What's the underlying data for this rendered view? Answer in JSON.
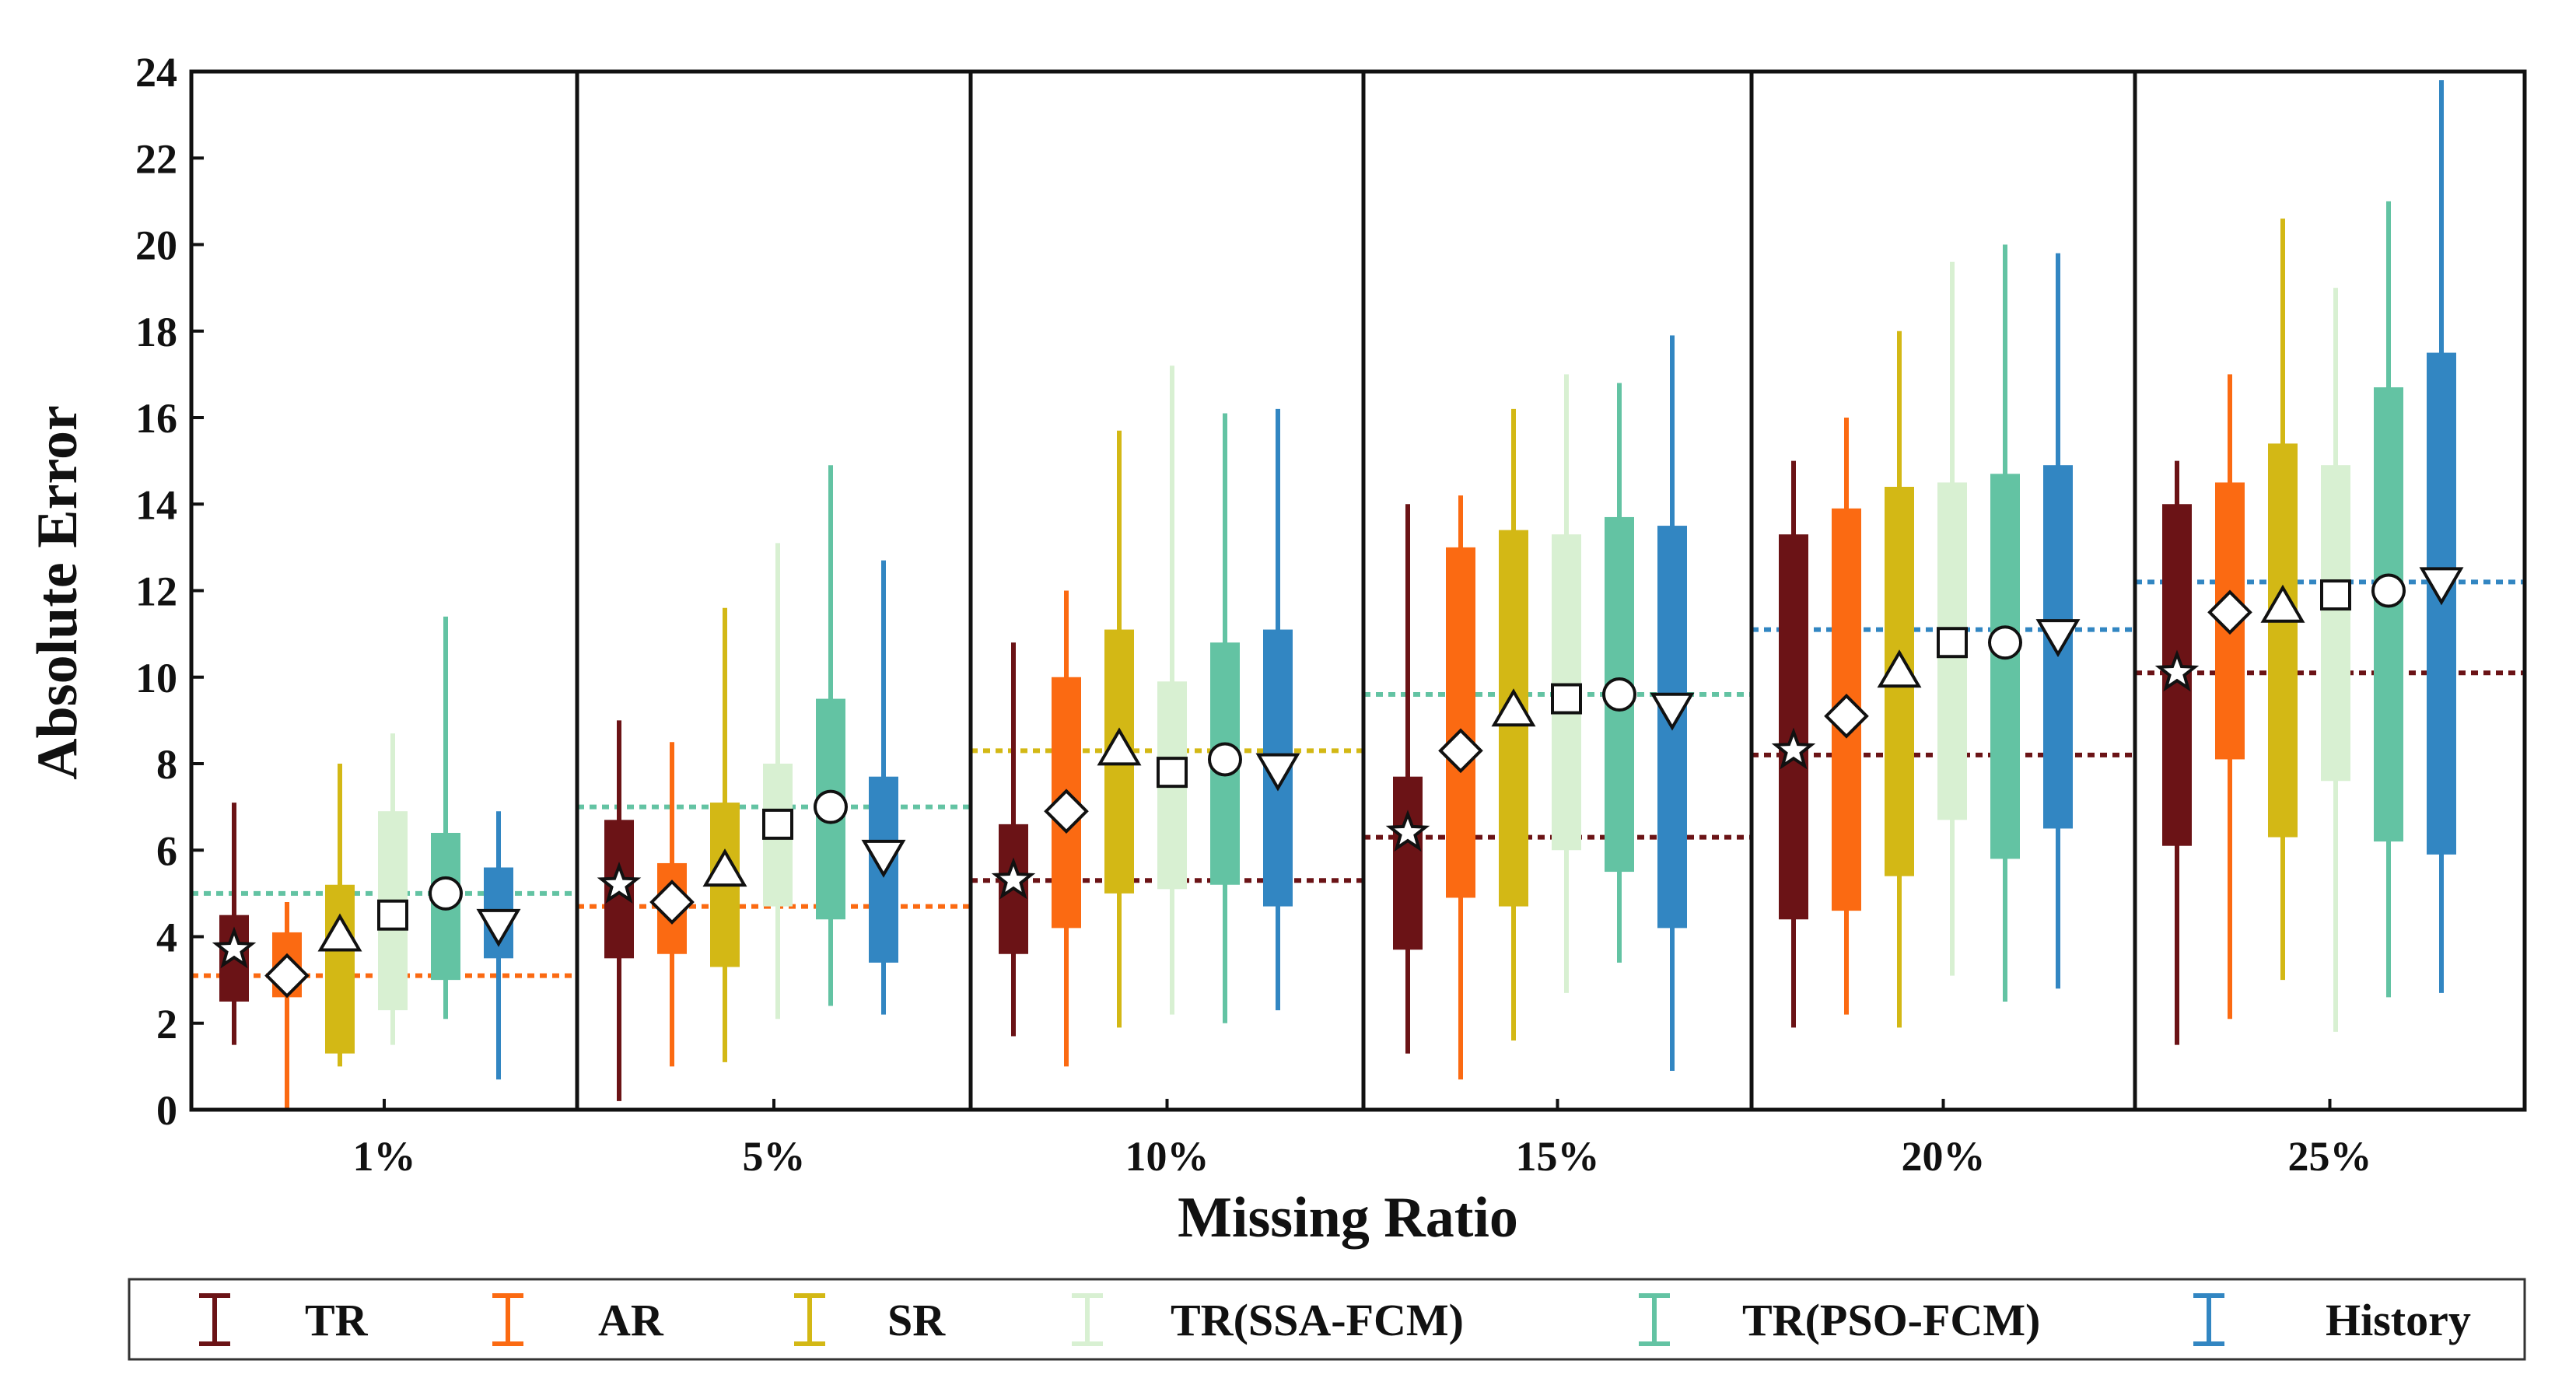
{
  "chart_data": {
    "type": "boxplot",
    "title": "",
    "xlabel": "Missing Ratio",
    "ylabel": "Absolute Error",
    "ylim": [
      0,
      24
    ],
    "yticks": [
      "0",
      "2",
      "4",
      "6",
      "8",
      "10",
      "12",
      "14",
      "16",
      "18",
      "20",
      "22",
      "24"
    ],
    "groups": [
      "1%",
      "5%",
      "10%",
      "15%",
      "20%",
      "25%"
    ],
    "legend_position": "bottom",
    "series": [
      {
        "name": "TR",
        "color": "#6b1316",
        "marker": "star",
        "whisker_low": [
          1.5,
          0.2,
          1.7,
          1.3,
          1.9,
          1.5
        ],
        "q1": [
          2.5,
          3.5,
          3.6,
          3.7,
          4.4,
          6.1
        ],
        "q3": [
          4.5,
          6.7,
          6.6,
          7.7,
          13.3,
          14.0
        ],
        "whisker_high": [
          7.1,
          9.0,
          10.8,
          14.0,
          15.0,
          15.0
        ],
        "mean": [
          3.7,
          5.2,
          5.3,
          6.4,
          8.3,
          10.1
        ]
      },
      {
        "name": "AR",
        "color": "#fb6a12",
        "marker": "diamond",
        "whisker_low": [
          0.0,
          1.0,
          1.0,
          0.7,
          2.2,
          2.1
        ],
        "q1": [
          2.6,
          3.6,
          4.2,
          4.9,
          4.6,
          8.1
        ],
        "q3": [
          4.1,
          5.7,
          10.0,
          13.0,
          13.9,
          14.5
        ],
        "whisker_high": [
          4.8,
          8.5,
          12.0,
          14.2,
          16.0,
          17.0
        ],
        "mean": [
          3.1,
          4.8,
          6.9,
          8.3,
          9.1,
          11.5
        ]
      },
      {
        "name": "SR",
        "color": "#d3b815",
        "marker": "triangle-up",
        "whisker_low": [
          1.0,
          1.1,
          1.9,
          1.6,
          1.9,
          3.0
        ],
        "q1": [
          1.3,
          3.3,
          5.0,
          4.7,
          5.4,
          6.3
        ],
        "q3": [
          5.2,
          7.1,
          11.1,
          13.4,
          14.4,
          15.4
        ],
        "whisker_high": [
          8.0,
          11.6,
          15.7,
          16.2,
          18.0,
          20.6
        ],
        "mean": [
          4.0,
          5.5,
          8.3,
          9.2,
          10.1,
          11.6
        ]
      },
      {
        "name": "TR(SSA-FCM)",
        "color": "#d8f0d2",
        "marker": "square",
        "whisker_low": [
          1.5,
          2.1,
          2.2,
          2.7,
          3.1,
          1.8
        ],
        "q1": [
          2.3,
          4.7,
          5.1,
          6.0,
          6.7,
          7.6
        ],
        "q3": [
          6.9,
          8.0,
          9.9,
          13.3,
          14.5,
          14.9
        ],
        "whisker_high": [
          8.7,
          13.1,
          17.2,
          17.0,
          19.6,
          19.0
        ],
        "mean": [
          4.5,
          6.6,
          7.8,
          9.5,
          10.8,
          11.9
        ]
      },
      {
        "name": "TR(PSO-FCM)",
        "color": "#63c3a3",
        "marker": "circle",
        "whisker_low": [
          2.1,
          2.4,
          2.0,
          3.4,
          2.5,
          2.6
        ],
        "q1": [
          3.0,
          4.4,
          5.2,
          5.5,
          5.8,
          6.2
        ],
        "q3": [
          6.4,
          9.5,
          10.8,
          13.7,
          14.7,
          16.7
        ],
        "whisker_high": [
          11.4,
          14.9,
          16.1,
          16.8,
          20.0,
          21.0
        ],
        "mean": [
          5.0,
          7.0,
          8.1,
          9.6,
          10.8,
          12.0
        ]
      },
      {
        "name": "History",
        "color": "#3286c2",
        "marker": "triangle-down",
        "whisker_low": [
          0.7,
          2.2,
          2.3,
          0.9,
          2.8,
          2.7
        ],
        "q1": [
          3.5,
          3.4,
          4.7,
          4.2,
          6.5,
          5.9
        ],
        "q3": [
          5.6,
          7.7,
          11.1,
          13.5,
          14.9,
          17.5
        ],
        "whisker_high": [
          6.9,
          12.7,
          16.2,
          17.9,
          19.8,
          23.8
        ],
        "mean": [
          4.3,
          5.9,
          7.9,
          9.3,
          11.0,
          12.2
        ]
      }
    ],
    "reference_lines": [
      {
        "group": "1%",
        "lines": [
          {
            "value": 5.0,
            "color": "#63c3a3"
          },
          {
            "value": 3.1,
            "color": "#fb6a12"
          }
        ]
      },
      {
        "group": "5%",
        "lines": [
          {
            "value": 7.0,
            "color": "#63c3a3"
          },
          {
            "value": 4.7,
            "color": "#fb6a12"
          }
        ]
      },
      {
        "group": "10%",
        "lines": [
          {
            "value": 8.3,
            "color": "#d3b815"
          },
          {
            "value": 5.3,
            "color": "#6b1316"
          }
        ]
      },
      {
        "group": "15%",
        "lines": [
          {
            "value": 9.6,
            "color": "#63c3a3"
          },
          {
            "value": 6.3,
            "color": "#6b1316"
          }
        ]
      },
      {
        "group": "20%",
        "lines": [
          {
            "value": 11.1,
            "color": "#3286c2"
          },
          {
            "value": 8.2,
            "color": "#6b1316"
          }
        ]
      },
      {
        "group": "25%",
        "lines": [
          {
            "value": 12.2,
            "color": "#3286c2"
          },
          {
            "value": 10.1,
            "color": "#6b1316"
          }
        ]
      }
    ]
  }
}
